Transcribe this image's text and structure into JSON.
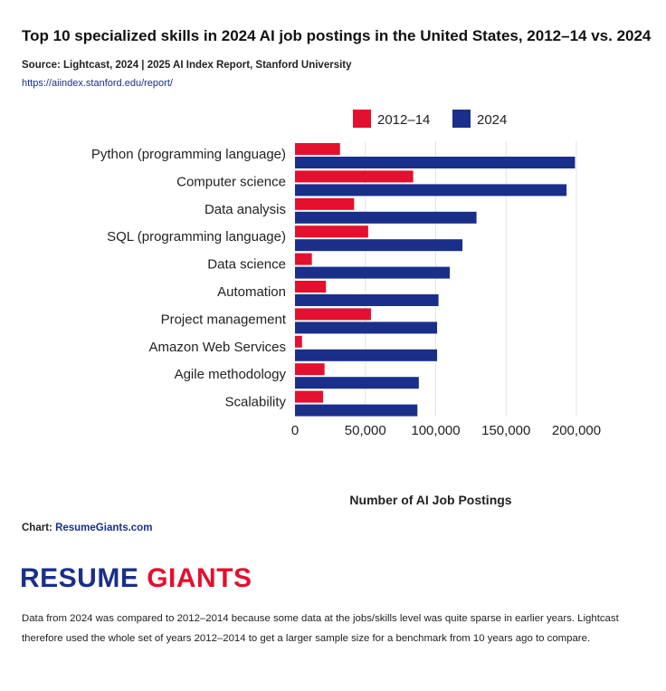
{
  "header": {
    "title": "Top 10 specialized skills in 2024 AI job postings in the United States, 2012–14 vs. 2024",
    "source": "Source: Lightcast, 2024 | 2025 AI Index Report, Stanford University",
    "link": "https://aiindex.stanford.edu/report/"
  },
  "chart_data": {
    "type": "bar",
    "orientation": "horizontal",
    "title": "Top 10 specialized skills in 2024 AI job postings in the United States, 2012–14 vs. 2024",
    "xlabel": "Number of AI Job Postings",
    "ylabel": "",
    "xlim": [
      0,
      200000
    ],
    "xticks": [
      0,
      50000,
      100000,
      150000,
      200000
    ],
    "xtick_labels": [
      "0",
      "50,000",
      "100,000",
      "150,000",
      "200,000"
    ],
    "grid": true,
    "legend": "top-center",
    "categories": [
      "Python (programming language)",
      "Computer science",
      "Data analysis",
      "SQL (programming language)",
      "Data science",
      "Automation",
      "Project management",
      "Amazon Web Services",
      "Agile methodology",
      "Scalability"
    ],
    "series": [
      {
        "name": "2012–14",
        "color": "#e4102e",
        "values": [
          32000,
          84000,
          42000,
          52000,
          12000,
          22000,
          54000,
          5000,
          21000,
          20000
        ]
      },
      {
        "name": "2024",
        "color": "#1a2f8a",
        "values": [
          199000,
          193000,
          129000,
          119000,
          110000,
          102000,
          101000,
          101000,
          88000,
          87000
        ]
      }
    ]
  },
  "footer": {
    "credit_prefix": "Chart: ",
    "credit_link": "ResumeGiants.com",
    "logo_part1": "RESUME",
    "logo_part2": "GIANTS",
    "note": "Data from 2024 was compared to 2012–2014 because some data at the jobs/skills level was quite sparse in earlier years. Lightcast therefore used the whole set of years 2012–2014 to get a larger sample size for a benchmark from 10 years ago to compare."
  }
}
